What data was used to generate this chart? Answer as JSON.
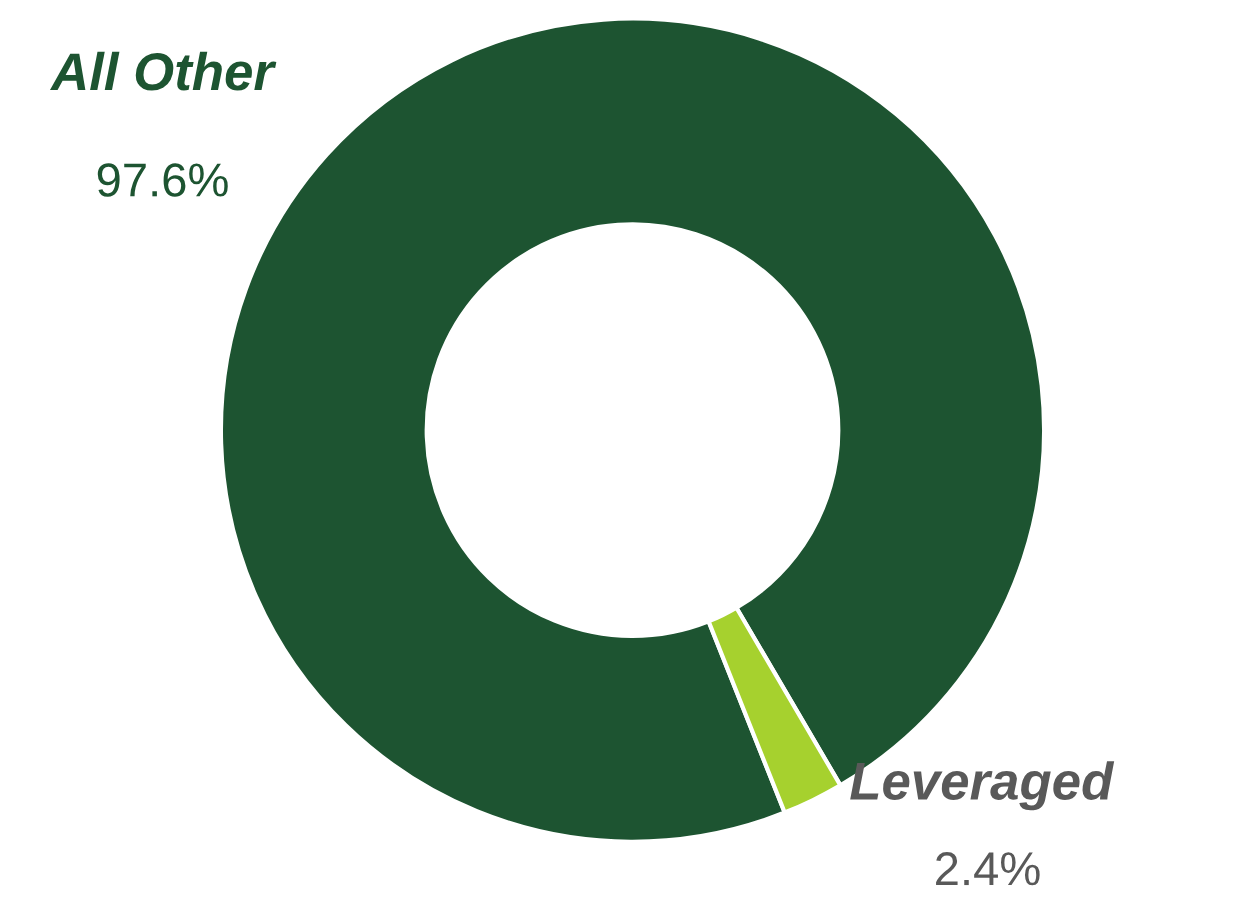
{
  "chart_data": {
    "type": "donut",
    "categories": [
      "All Other",
      "Leveraged"
    ],
    "values": [
      97.6,
      2.4
    ],
    "colors": [
      "#1d5431",
      "#a6d12e"
    ],
    "value_labels": [
      "97.6%",
      "2.4%"
    ],
    "legend": false
  }
}
